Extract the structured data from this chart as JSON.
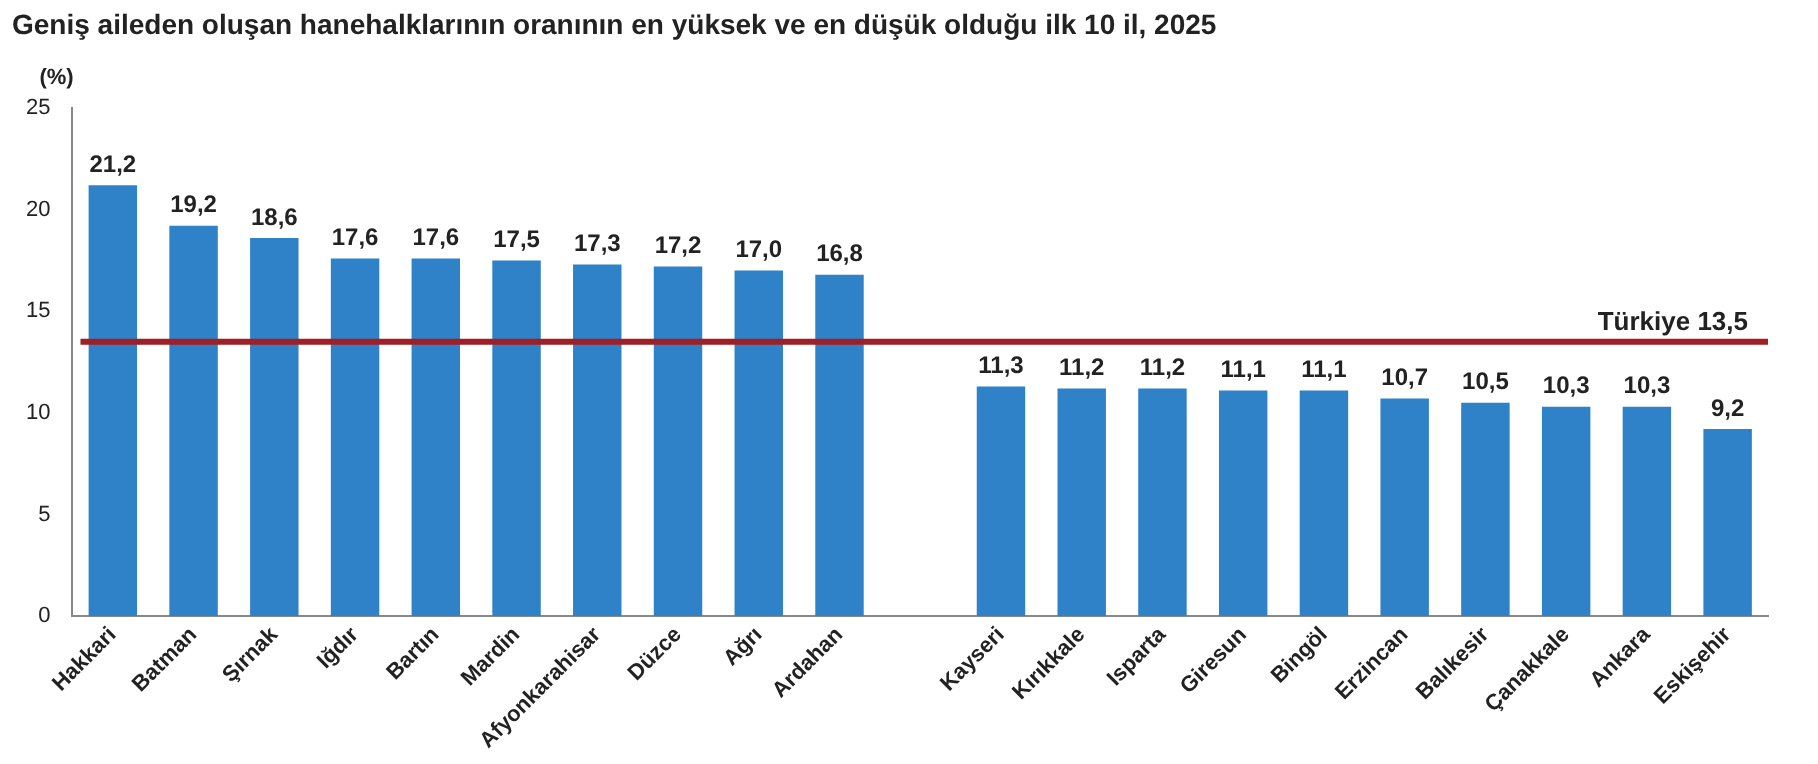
{
  "chart_data": {
    "type": "bar",
    "title": "Geniş aileden oluşan hanehalklarının oranının en yüksek ve en düşük olduğu ilk 10 il, 2025",
    "ylabel": "(%)",
    "categories": [
      "Hakkari",
      "Batman",
      "Şırnak",
      "Iğdır",
      "Bartın",
      "Mardin",
      "Afyonkarahisar",
      "Düzce",
      "Ağrı",
      "Ardahan",
      null,
      "Kayseri",
      "Kırıkkale",
      "Isparta",
      "Giresun",
      "Bingöl",
      "Erzincan",
      "Balıkesir",
      "Çanakkale",
      "Ankara",
      "Eskişehir"
    ],
    "values": [
      21.2,
      19.2,
      18.6,
      17.6,
      17.6,
      17.5,
      17.3,
      17.2,
      17.0,
      16.8,
      null,
      11.3,
      11.2,
      11.2,
      11.1,
      11.1,
      10.7,
      10.5,
      10.3,
      10.3,
      9.2
    ],
    "value_labels": [
      "21,2",
      "19,2",
      "18,6",
      "17,6",
      "17,6",
      "17,5",
      "17,3",
      "17,2",
      "17,0",
      "16,8",
      null,
      "11,3",
      "11,2",
      "11,2",
      "11,1",
      "11,1",
      "10,7",
      "10,5",
      "10,3",
      "10,3",
      "9,2"
    ],
    "color": "#2f81c8",
    "ylim": [
      0,
      25
    ],
    "yticks": [
      0,
      5,
      10,
      15,
      20,
      25
    ],
    "grid": false,
    "legend": false,
    "ref_lines": [
      {
        "axis": "y",
        "value": 13.5,
        "label": "Türkiye 13,5",
        "color": "#9e1f24"
      }
    ]
  }
}
